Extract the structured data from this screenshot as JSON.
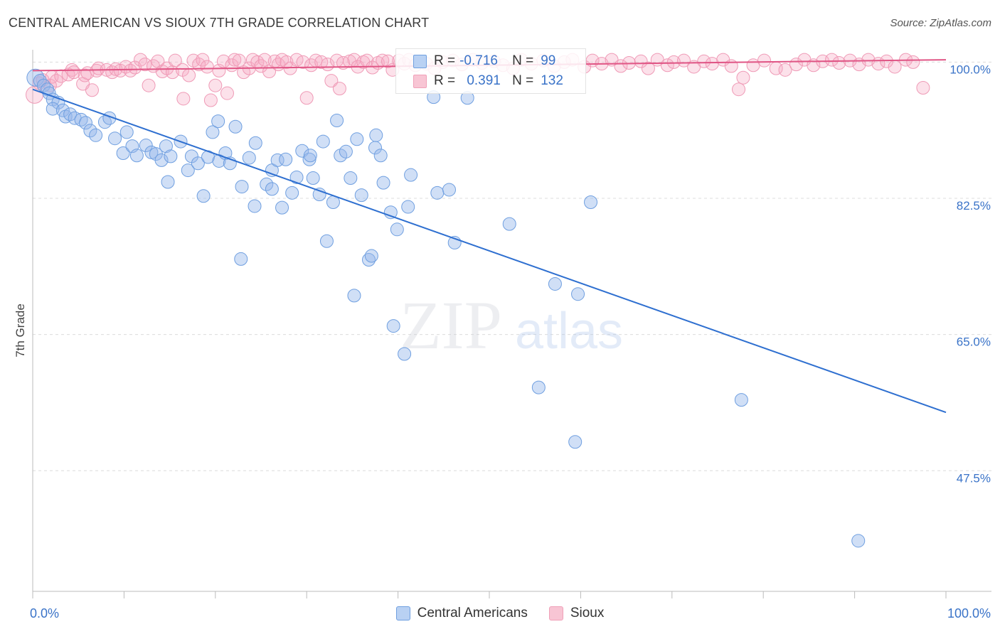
{
  "title": "CENTRAL AMERICAN VS SIOUX 7TH GRADE CORRELATION CHART",
  "source": "Source: ZipAtlas.com",
  "watermark": {
    "zip": "ZIP",
    "atlas": "atlas"
  },
  "chart_data": {
    "type": "scatter",
    "title": "CENTRAL AMERICAN VS SIOUX 7TH GRADE CORRELATION CHART",
    "xlabel": "",
    "ylabel": "7th Grade",
    "xlim": [
      0,
      100
    ],
    "ylim": [
      32,
      102.5
    ],
    "x_tick_labels": [
      "0.0%",
      "100.0%"
    ],
    "y_ticks": [
      100.0,
      82.5,
      65.0,
      47.5
    ],
    "y_tick_labels": [
      "100.0%",
      "82.5%",
      "65.0%",
      "47.5%"
    ],
    "grid": true,
    "series": [
      {
        "name": "Central Americans",
        "color": "#6f9fe0",
        "line_color": "#2e6fd0",
        "R": "-0.716",
        "N": "99",
        "trend": {
          "x": [
            0,
            100
          ],
          "y": [
            96.5,
            55.0
          ]
        },
        "points": [
          [
            0.3,
            98.0
          ],
          [
            0.8,
            97.6
          ],
          [
            1.2,
            97.0
          ],
          [
            1.6,
            96.5
          ],
          [
            1.8,
            96.0
          ],
          [
            2.2,
            95.2
          ],
          [
            2.8,
            94.8
          ],
          [
            2.2,
            94.0
          ],
          [
            3.3,
            93.8
          ],
          [
            3.6,
            93.0
          ],
          [
            4.1,
            93.3
          ],
          [
            4.6,
            92.8
          ],
          [
            5.3,
            92.6
          ],
          [
            5.8,
            92.2
          ],
          [
            6.3,
            91.2
          ],
          [
            6.9,
            90.6
          ],
          [
            7.9,
            92.3
          ],
          [
            8.4,
            92.8
          ],
          [
            9.0,
            90.2
          ],
          [
            10.3,
            91.0
          ],
          [
            9.9,
            88.3
          ],
          [
            10.9,
            89.2
          ],
          [
            11.4,
            88.0
          ],
          [
            12.4,
            89.3
          ],
          [
            13.0,
            88.4
          ],
          [
            13.5,
            88.2
          ],
          [
            14.1,
            87.4
          ],
          [
            14.6,
            89.2
          ],
          [
            15.1,
            87.9
          ],
          [
            14.8,
            84.6
          ],
          [
            16.2,
            89.8
          ],
          [
            17.0,
            86.1
          ],
          [
            17.4,
            87.9
          ],
          [
            18.1,
            87.0
          ],
          [
            18.7,
            82.8
          ],
          [
            19.2,
            87.8
          ],
          [
            19.7,
            91.0
          ],
          [
            20.4,
            87.3
          ],
          [
            20.3,
            92.4
          ],
          [
            21.1,
            88.3
          ],
          [
            21.6,
            87.0
          ],
          [
            22.2,
            91.7
          ],
          [
            22.9,
            84.0
          ],
          [
            22.8,
            74.7
          ],
          [
            23.7,
            87.7
          ],
          [
            24.3,
            81.5
          ],
          [
            24.4,
            89.6
          ],
          [
            25.6,
            84.3
          ],
          [
            26.2,
            83.7
          ],
          [
            26.2,
            86.1
          ],
          [
            26.8,
            87.4
          ],
          [
            27.3,
            81.3
          ],
          [
            27.7,
            87.5
          ],
          [
            28.4,
            83.2
          ],
          [
            28.9,
            85.2
          ],
          [
            29.5,
            88.6
          ],
          [
            30.3,
            87.5
          ],
          [
            30.4,
            88.0
          ],
          [
            30.7,
            85.1
          ],
          [
            31.4,
            83.0
          ],
          [
            31.8,
            89.8
          ],
          [
            32.2,
            77.0
          ],
          [
            32.9,
            82.0
          ],
          [
            33.3,
            92.5
          ],
          [
            33.7,
            88.0
          ],
          [
            34.3,
            88.5
          ],
          [
            34.8,
            85.1
          ],
          [
            35.2,
            70.0
          ],
          [
            35.5,
            90.1
          ],
          [
            36.0,
            82.9
          ],
          [
            36.8,
            74.6
          ],
          [
            37.1,
            75.1
          ],
          [
            37.5,
            89.0
          ],
          [
            37.6,
            90.6
          ],
          [
            38.1,
            88.0
          ],
          [
            38.4,
            84.5
          ],
          [
            39.2,
            80.7
          ],
          [
            39.5,
            66.1
          ],
          [
            39.9,
            78.5
          ],
          [
            40.7,
            62.5
          ],
          [
            41.1,
            81.4
          ],
          [
            41.4,
            85.5
          ],
          [
            43.9,
            95.5
          ],
          [
            44.3,
            83.2
          ],
          [
            45.6,
            83.6
          ],
          [
            46.2,
            76.8
          ],
          [
            47.6,
            95.4
          ],
          [
            52.2,
            79.2
          ],
          [
            55.4,
            58.2
          ],
          [
            57.2,
            71.5
          ],
          [
            59.4,
            51.2
          ],
          [
            59.7,
            70.2
          ],
          [
            61.1,
            82.0
          ],
          [
            77.6,
            56.6
          ],
          [
            90.4,
            38.5
          ]
        ]
      },
      {
        "name": "Sioux",
        "color": "#f0a0b8",
        "line_color": "#e05585",
        "R": "0.391",
        "N": "132",
        "trend": {
          "x": [
            0,
            100
          ],
          "y": [
            98.9,
            100.3
          ]
        },
        "points": [
          [
            0.2,
            95.8
          ],
          [
            0.7,
            97.3
          ],
          [
            1.1,
            97.7
          ],
          [
            1.9,
            97.0
          ],
          [
            2.1,
            98.1
          ],
          [
            2.6,
            97.6
          ],
          [
            3.1,
            98.2
          ],
          [
            3.9,
            98.4
          ],
          [
            4.3,
            99.0
          ],
          [
            4.5,
            98.7
          ],
          [
            5.5,
            97.2
          ],
          [
            5.7,
            98.3
          ],
          [
            6.0,
            98.6
          ],
          [
            6.5,
            96.4
          ],
          [
            7.0,
            98.9
          ],
          [
            7.2,
            99.2
          ],
          [
            8.1,
            99.0
          ],
          [
            8.7,
            98.7
          ],
          [
            9.1,
            99.1
          ],
          [
            9.6,
            98.9
          ],
          [
            10.2,
            99.4
          ],
          [
            10.7,
            98.9
          ],
          [
            11.2,
            99.3
          ],
          [
            11.8,
            100.3
          ],
          [
            12.3,
            99.7
          ],
          [
            12.7,
            97.0
          ],
          [
            13.2,
            99.5
          ],
          [
            13.7,
            100.1
          ],
          [
            14.2,
            98.8
          ],
          [
            14.7,
            99.2
          ],
          [
            15.3,
            98.7
          ],
          [
            15.6,
            100.2
          ],
          [
            16.4,
            99.0
          ],
          [
            16.5,
            95.3
          ],
          [
            17.1,
            98.3
          ],
          [
            17.6,
            100.2
          ],
          [
            18.2,
            99.7
          ],
          [
            18.6,
            100.3
          ],
          [
            19.1,
            99.4
          ],
          [
            19.5,
            95.1
          ],
          [
            20.0,
            97.0
          ],
          [
            20.4,
            98.9
          ],
          [
            20.9,
            100.1
          ],
          [
            21.3,
            96.0
          ],
          [
            21.8,
            99.6
          ],
          [
            22.1,
            100.3
          ],
          [
            22.6,
            100.2
          ],
          [
            23.1,
            98.7
          ],
          [
            23.7,
            99.2
          ],
          [
            24.1,
            100.3
          ],
          [
            24.6,
            100.0
          ],
          [
            25.0,
            99.5
          ],
          [
            25.4,
            100.3
          ],
          [
            25.9,
            98.8
          ],
          [
            26.5,
            100.1
          ],
          [
            26.9,
            99.7
          ],
          [
            27.3,
            100.3
          ],
          [
            27.8,
            100.0
          ],
          [
            28.2,
            99.2
          ],
          [
            28.9,
            100.3
          ],
          [
            29.6,
            100.0
          ],
          [
            30.0,
            95.4
          ],
          [
            30.5,
            99.6
          ],
          [
            31.0,
            100.2
          ],
          [
            31.6,
            100.0
          ],
          [
            32.3,
            99.7
          ],
          [
            32.7,
            97.6
          ],
          [
            33.3,
            100.2
          ],
          [
            34.0,
            99.9
          ],
          [
            33.6,
            96.6
          ],
          [
            34.7,
            100.1
          ],
          [
            35.2,
            100.3
          ],
          [
            35.6,
            99.4
          ],
          [
            36.2,
            100.0
          ],
          [
            36.6,
            100.2
          ],
          [
            37.2,
            99.3
          ],
          [
            37.8,
            99.9
          ],
          [
            38.3,
            100.2
          ],
          [
            38.9,
            100.1
          ],
          [
            39.4,
            99.0
          ],
          [
            40.1,
            100.2
          ],
          [
            40.7,
            99.8
          ],
          [
            41.2,
            100.3
          ],
          [
            41.9,
            99.6
          ],
          [
            42.4,
            100.1
          ],
          [
            43.1,
            99.8
          ],
          [
            44.0,
            99.2
          ],
          [
            44.9,
            100.0
          ],
          [
            46.0,
            100.2
          ],
          [
            47.0,
            99.7
          ],
          [
            48.2,
            100.3
          ],
          [
            49.2,
            99.9
          ],
          [
            50.5,
            100.1
          ],
          [
            51.5,
            99.6
          ],
          [
            52.6,
            99.2
          ],
          [
            53.5,
            100.3
          ],
          [
            54.6,
            99.8
          ],
          [
            55.9,
            100.2
          ],
          [
            57.1,
            99.5
          ],
          [
            58.2,
            100.0
          ],
          [
            59.1,
            100.3
          ],
          [
            60.4,
            99.4
          ],
          [
            61.3,
            100.2
          ],
          [
            62.3,
            99.8
          ],
          [
            63.4,
            100.3
          ],
          [
            64.4,
            99.5
          ],
          [
            65.3,
            99.9
          ],
          [
            66.6,
            100.1
          ],
          [
            67.4,
            99.2
          ],
          [
            68.4,
            100.3
          ],
          [
            69.5,
            99.6
          ],
          [
            70.2,
            100.0
          ],
          [
            71.3,
            100.2
          ],
          [
            72.4,
            99.4
          ],
          [
            73.5,
            100.1
          ],
          [
            74.4,
            99.8
          ],
          [
            75.6,
            100.3
          ],
          [
            76.5,
            99.5
          ],
          [
            77.3,
            96.5
          ],
          [
            77.8,
            98.0
          ],
          [
            78.9,
            99.6
          ],
          [
            80.1,
            100.2
          ],
          [
            81.4,
            99.2
          ],
          [
            82.4,
            99.0
          ],
          [
            83.6,
            99.7
          ],
          [
            84.5,
            100.3
          ],
          [
            85.5,
            99.6
          ],
          [
            86.5,
            100.1
          ],
          [
            87.5,
            100.3
          ],
          [
            88.3,
            99.9
          ],
          [
            89.5,
            100.2
          ],
          [
            90.5,
            99.7
          ],
          [
            91.5,
            100.3
          ],
          [
            92.6,
            99.8
          ],
          [
            93.5,
            100.1
          ],
          [
            94.4,
            99.4
          ],
          [
            95.6,
            100.3
          ],
          [
            96.4,
            100.0
          ],
          [
            97.5,
            96.7
          ]
        ]
      }
    ]
  }
}
